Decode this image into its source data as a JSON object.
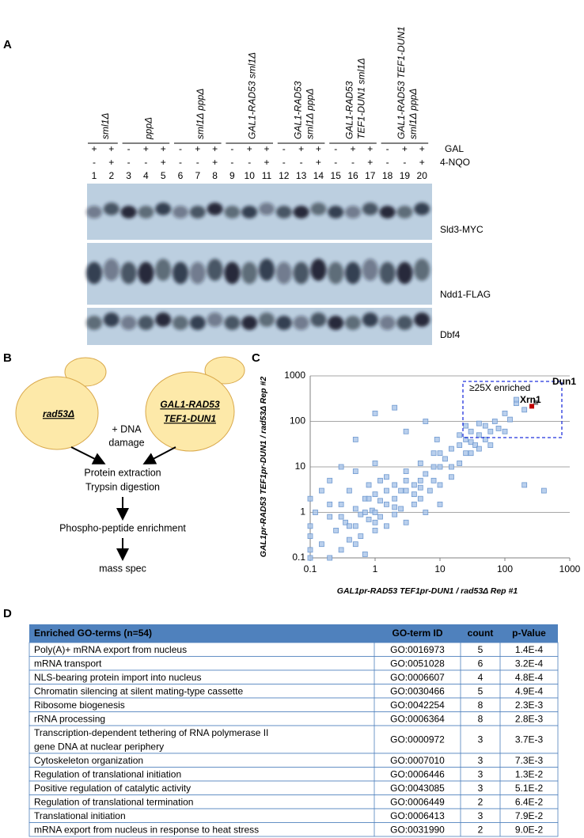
{
  "panel_a": {
    "label": "A",
    "groups": [
      [
        "sml1Δ"
      ],
      [
        "pppΔ"
      ],
      [
        "sml1Δ pppΔ"
      ],
      [
        "GAL1-RAD53 sml1Δ"
      ],
      [
        "GAL1-RAD53",
        "sml1Δ pppΔ"
      ],
      [
        "GAL1-RAD53",
        "TEF1-DUN1 sml1Δ"
      ],
      [
        "GAL1-RAD53 TEF1-DUN1",
        "sml1Δ pppΔ"
      ]
    ],
    "row_labels": [
      "GAL",
      "4-NQO"
    ],
    "gal": [
      "+",
      "+",
      "-",
      "+",
      "+",
      "-",
      "+",
      "+",
      "-",
      "+",
      "+",
      "-",
      "+",
      "+",
      "-",
      "+",
      "+",
      "-",
      "+",
      "+"
    ],
    "nqo": [
      "-",
      "+",
      "-",
      "-",
      "+",
      "-",
      "-",
      "+",
      "-",
      "-",
      "+",
      "-",
      "-",
      "+",
      "-",
      "-",
      "+",
      "-",
      "-",
      "+"
    ],
    "lanes": [
      1,
      2,
      3,
      4,
      5,
      6,
      7,
      8,
      9,
      10,
      11,
      12,
      13,
      14,
      15,
      16,
      17,
      18,
      19,
      20
    ],
    "blots": [
      "Sld3-MYC",
      "Ndd1-FLAG",
      "Dbf4"
    ]
  },
  "panel_b": {
    "label": "B",
    "left_cell": "rad53Δ",
    "right_cell": [
      "GAL1-RAD53",
      "TEF1-DUN1"
    ],
    "treatment": [
      "+ DNA",
      "damage"
    ],
    "steps": [
      [
        "Protein extraction",
        "Trypsin digestion"
      ],
      [
        "Phospho-peptide enrichment"
      ],
      [
        "mass spec"
      ]
    ]
  },
  "chart_data": {
    "type": "scatter",
    "label": "C",
    "x_label": "GAL1pr-RAD53 TEF1pr-DUN1 / rad53Δ Rep #1",
    "y_label": "GAL1pr-RAD53 TEF1pr-DUN1 / rad53Δ Rep #2",
    "annotation": "≥25X enriched",
    "log_x": true,
    "log_y": true,
    "grid": true,
    "color": "#a9c4e8",
    "xlim": [
      0.1,
      1000
    ],
    "ylim": [
      0.1,
      1000
    ],
    "xticks": [
      0.1,
      1,
      10,
      100,
      1000
    ],
    "yticks": [
      0.1,
      1,
      10,
      100,
      1000
    ],
    "x": [
      0.1,
      0.1,
      0.1,
      0.1,
      0.12,
      0.15,
      0.2,
      0.2,
      0.25,
      0.3,
      0.3,
      0.35,
      0.4,
      0.4,
      0.5,
      0.5,
      0.5,
      0.6,
      0.6,
      0.7,
      0.7,
      0.8,
      0.8,
      0.9,
      1,
      1,
      1,
      1,
      1.2,
      1.2,
      1.5,
      1.5,
      1.5,
      2,
      2,
      2,
      2.5,
      2.5,
      3,
      3,
      3,
      4,
      4,
      5,
      5,
      5,
      6,
      7,
      8,
      8,
      10,
      10,
      12,
      15,
      15,
      20,
      20,
      25,
      25,
      30,
      30,
      35,
      40,
      40,
      50,
      50,
      60,
      70,
      80,
      100,
      120,
      150,
      200,
      0.15,
      0.3,
      0.5,
      0.8,
      1,
      2,
      3,
      5,
      10,
      20,
      40,
      0.2,
      0.4,
      0.7,
      1.5,
      4,
      8,
      15,
      30,
      0.3,
      1,
      3,
      10,
      200,
      400,
      0.5,
      2,
      6,
      25,
      60,
      100,
      150,
      0.1,
      0.2,
      1.2,
      6,
      9
    ],
    "values": [
      0.1,
      0.5,
      2,
      0.3,
      1,
      0.2,
      0.8,
      5,
      0.4,
      0.15,
      1.5,
      0.6,
      3,
      0.25,
      0.5,
      1.2,
      8,
      0.3,
      0.9,
      2,
      0.12,
      0.7,
      4,
      1.1,
      1,
      0.4,
      2.5,
      12,
      0.8,
      1.8,
      1.5,
      0.5,
      6,
      2,
      0.9,
      4,
      3,
      1.2,
      3,
      8,
      0.6,
      4,
      1.5,
      5,
      12,
      2,
      7,
      3,
      10,
      20,
      10,
      4,
      15,
      25,
      6,
      30,
      12,
      40,
      20,
      35,
      60,
      30,
      50,
      25,
      80,
      40,
      60,
      100,
      70,
      150,
      110,
      250,
      180,
      3,
      0.8,
      0.2,
      2,
      0.6,
      1.3,
      5,
      3.5,
      20,
      50,
      90,
      1.5,
      0.5,
      1,
      3,
      2.5,
      5,
      10,
      20,
      10,
      150,
      60,
      1.5,
      4,
      3,
      40,
      200,
      100,
      80,
      30,
      60,
      300,
      0.15,
      0.1,
      5,
      1,
      40
    ],
    "highlights": [
      {
        "label": "Dun1",
        "x": 300,
        "y": 260,
        "color": "#808080"
      },
      {
        "label": "Xrn1",
        "x": 260,
        "y": 215,
        "color": "#c00000"
      }
    ]
  },
  "panel_d": {
    "label": "D",
    "table": {
      "header": [
        "Enriched GO-terms (n=54)",
        "GO-term ID",
        "count",
        "p-Value"
      ],
      "rows": [
        [
          [
            "Poly(A)+ mRNA export from nucleus"
          ],
          "GO:0016973",
          5,
          "1.4E-4"
        ],
        [
          [
            "mRNA transport"
          ],
          "GO:0051028",
          6,
          "3.2E-4"
        ],
        [
          [
            "NLS-bearing protein import into nucleus"
          ],
          "GO:0006607",
          4,
          "4.8E-4"
        ],
        [
          [
            "Chromatin silencing at silent mating-type cassette"
          ],
          "GO:0030466",
          5,
          "4.9E-4"
        ],
        [
          [
            "Ribosome biogenesis"
          ],
          "GO:0042254",
          8,
          "2.3E-3"
        ],
        [
          [
            "rRNA processing"
          ],
          "GO:0006364",
          8,
          "2.8E-3"
        ],
        [
          [
            "Transcription-dependent tethering of RNA polymerase II",
            "gene DNA at nuclear periphery"
          ],
          "GO:0000972",
          3,
          "3.7E-3"
        ],
        [
          [
            "Cytoskeleton organization"
          ],
          "GO:0007010",
          3,
          "7.3E-3"
        ],
        [
          [
            "Regulation of translational initiation"
          ],
          "GO:0006446",
          3,
          "1.3E-2"
        ],
        [
          [
            "Positive regulation of catalytic activity"
          ],
          "GO:0043085",
          3,
          "5.1E-2"
        ],
        [
          [
            "Regulation of translational termination"
          ],
          "GO:0006449",
          2,
          "6.4E-2"
        ],
        [
          [
            "Translational initiation"
          ],
          "GO:0006413",
          3,
          "7.9E-2"
        ],
        [
          [
            "mRNA export from nucleus in response to heat stress"
          ],
          "GO:0031990",
          2,
          "9.0E-2"
        ]
      ]
    }
  }
}
